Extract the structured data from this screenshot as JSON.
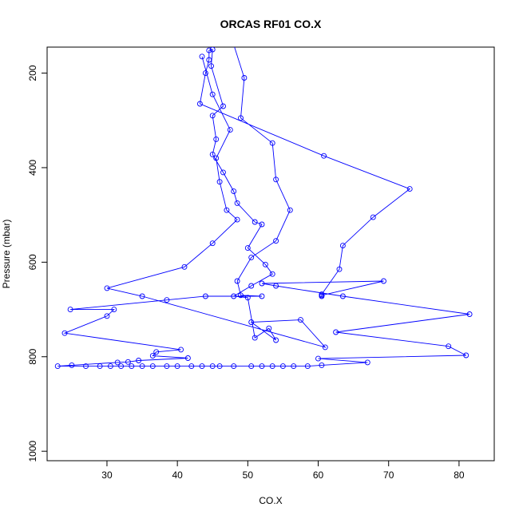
{
  "chart_data": {
    "type": "scatter",
    "title": "ORCAS RF01 CO.X",
    "xlabel": "CO.X",
    "ylabel": "Pressure (mbar)",
    "xlim": [
      21.5,
      85
    ],
    "ylim": [
      1020,
      145
    ],
    "y_reversed": true,
    "x_ticks": [
      30,
      40,
      50,
      60,
      70,
      80
    ],
    "y_ticks": [
      200,
      400,
      600,
      800,
      1000
    ],
    "grid": false,
    "line_color": "#0000ff",
    "series": [
      {
        "values": [
          [
            47.8,
            130
          ],
          [
            49.5,
            210
          ],
          [
            49.0,
            295
          ],
          [
            53.5,
            348
          ],
          [
            54.0,
            425
          ],
          [
            56.0,
            490
          ],
          [
            54.0,
            555
          ],
          [
            50.5,
            590
          ],
          [
            48.5,
            640
          ],
          [
            49.0,
            670
          ],
          [
            52.0,
            672
          ],
          [
            44.0,
            672
          ],
          [
            38.5,
            680
          ],
          [
            24.8,
            700
          ],
          [
            31.0,
            700
          ],
          [
            30.0,
            714
          ],
          [
            24.0,
            750
          ],
          [
            40.5,
            785
          ],
          [
            37.0,
            790
          ],
          [
            36.5,
            798
          ],
          [
            41.5,
            803
          ],
          [
            34.5,
            808
          ],
          [
            33.0,
            811
          ],
          [
            31.5,
            812
          ],
          [
            25.0,
            818
          ],
          [
            23.0,
            820
          ],
          [
            27.0,
            820
          ],
          [
            29.0,
            820
          ],
          [
            30.5,
            820
          ],
          [
            32.0,
            820
          ],
          [
            33.5,
            820
          ],
          [
            35.0,
            820
          ],
          [
            36.5,
            820
          ],
          [
            38.5,
            820
          ],
          [
            40.0,
            820
          ],
          [
            42.0,
            820
          ],
          [
            43.5,
            820
          ],
          [
            45.0,
            820
          ],
          [
            46.0,
            820
          ],
          [
            48.0,
            820
          ],
          [
            50.5,
            820
          ],
          [
            52.0,
            820
          ],
          [
            53.5,
            820
          ],
          [
            55.0,
            820
          ],
          [
            56.5,
            820
          ],
          [
            58.5,
            820
          ],
          [
            60.5,
            818
          ],
          [
            67.0,
            812
          ],
          [
            60.0,
            804
          ],
          [
            81.0,
            797
          ],
          [
            78.5,
            778
          ],
          [
            62.5,
            748
          ],
          [
            81.5,
            710
          ],
          [
            63.5,
            672
          ],
          [
            54.0,
            650
          ],
          [
            52.0,
            645
          ],
          [
            69.3,
            640
          ],
          [
            60.5,
            670
          ],
          [
            60.5,
            672
          ],
          [
            60.5,
            668
          ],
          [
            63.0,
            615
          ],
          [
            63.5,
            565
          ],
          [
            67.8,
            505
          ],
          [
            73.0,
            445
          ],
          [
            60.8,
            375
          ],
          [
            43.2,
            265
          ],
          [
            44.0,
            200
          ],
          [
            44.5,
            172
          ],
          [
            44.5,
            152
          ],
          [
            45.0,
            150
          ],
          [
            44.8,
            185
          ],
          [
            46.5,
            270
          ],
          [
            45.0,
            290
          ],
          [
            45.5,
            340
          ],
          [
            45.0,
            372
          ],
          [
            46.5,
            410
          ],
          [
            48.0,
            450
          ],
          [
            48.5,
            475
          ],
          [
            51.0,
            515
          ],
          [
            52.0,
            520
          ],
          [
            50.0,
            570
          ],
          [
            52.5,
            605
          ],
          [
            53.5,
            625
          ],
          [
            50.5,
            650
          ],
          [
            48.0,
            672
          ],
          [
            50.0,
            675
          ],
          [
            51.0,
            760
          ],
          [
            53.0,
            740
          ],
          [
            54.0,
            765
          ],
          [
            50.5,
            727
          ],
          [
            57.5,
            722
          ],
          [
            61.0,
            780
          ],
          [
            35.0,
            672
          ],
          [
            30.0,
            655
          ],
          [
            41.0,
            610
          ],
          [
            45.0,
            560
          ],
          [
            48.5,
            510
          ],
          [
            47.0,
            490
          ],
          [
            46.0,
            430
          ],
          [
            45.5,
            380
          ],
          [
            47.5,
            320
          ],
          [
            45.0,
            245
          ],
          [
            43.5,
            165
          ]
        ]
      }
    ]
  }
}
